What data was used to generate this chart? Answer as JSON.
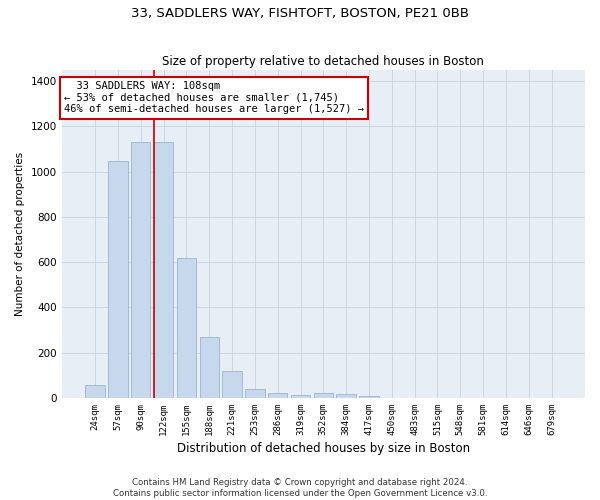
{
  "title": "33, SADDLERS WAY, FISHTOFT, BOSTON, PE21 0BB",
  "subtitle": "Size of property relative to detached houses in Boston",
  "xlabel": "Distribution of detached houses by size in Boston",
  "ylabel": "Number of detached properties",
  "categories": [
    "24sqm",
    "57sqm",
    "90sqm",
    "122sqm",
    "155sqm",
    "188sqm",
    "221sqm",
    "253sqm",
    "286sqm",
    "319sqm",
    "352sqm",
    "384sqm",
    "417sqm",
    "450sqm",
    "483sqm",
    "515sqm",
    "548sqm",
    "581sqm",
    "614sqm",
    "646sqm",
    "679sqm"
  ],
  "values": [
    55,
    1045,
    1130,
    1130,
    620,
    270,
    120,
    38,
    20,
    15,
    20,
    18,
    10,
    0,
    0,
    0,
    0,
    0,
    0,
    0,
    0
  ],
  "bar_color": "#c8d8ec",
  "bar_edgecolor": "#9ab4d0",
  "grid_color": "#cdd5e3",
  "bg_color": "#e8eef6",
  "vline_color": "#cc0000",
  "vline_position": 2.6,
  "annotation_text": "  33 SADDLERS WAY: 108sqm\n← 53% of detached houses are smaller (1,745)\n46% of semi-detached houses are larger (1,527) →",
  "annotation_box_edgecolor": "#cc0000",
  "footer_text": "Contains HM Land Registry data © Crown copyright and database right 2024.\nContains public sector information licensed under the Open Government Licence v3.0.",
  "ylim": [
    0,
    1450
  ],
  "yticks": [
    0,
    200,
    400,
    600,
    800,
    1000,
    1200,
    1400
  ],
  "title_fontsize": 9.5,
  "subtitle_fontsize": 8.5
}
